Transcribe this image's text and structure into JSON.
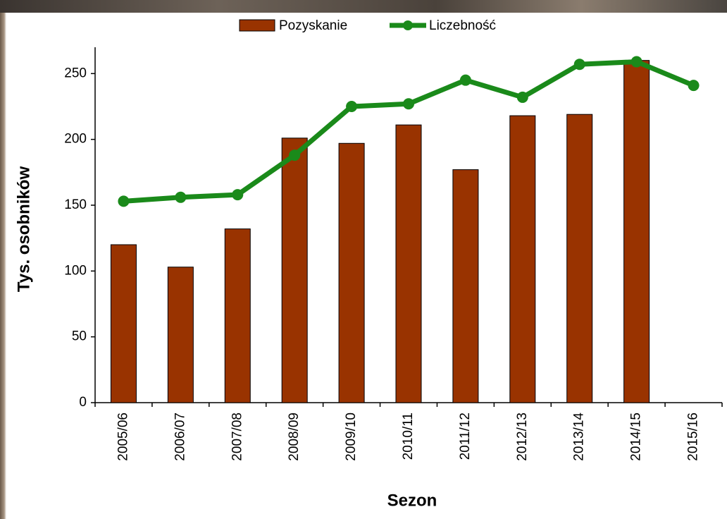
{
  "chart_data": {
    "type": "bar_line",
    "x_label": "Sezon",
    "y_label": "Tys. osobników",
    "categories": [
      "2005/06",
      "2006/07",
      "2007/08",
      "2008/09",
      "2009/10",
      "2010/11",
      "2011/12",
      "2012/13",
      "2013/14",
      "2014/15",
      "2015/16"
    ],
    "series": [
      {
        "name": "Pozyskanie",
        "type": "bar",
        "color": "#993300",
        "values": [
          120,
          103,
          132,
          201,
          197,
          211,
          177,
          218,
          219,
          260,
          null
        ]
      },
      {
        "name": "Liczebność",
        "type": "line",
        "color": "#1a8a1a",
        "values": [
          153,
          156,
          158,
          188,
          225,
          227,
          245,
          232,
          257,
          259,
          241
        ]
      }
    ],
    "ylim": [
      0,
      270
    ],
    "yticks": [
      0,
      50,
      100,
      150,
      200,
      250
    ]
  }
}
